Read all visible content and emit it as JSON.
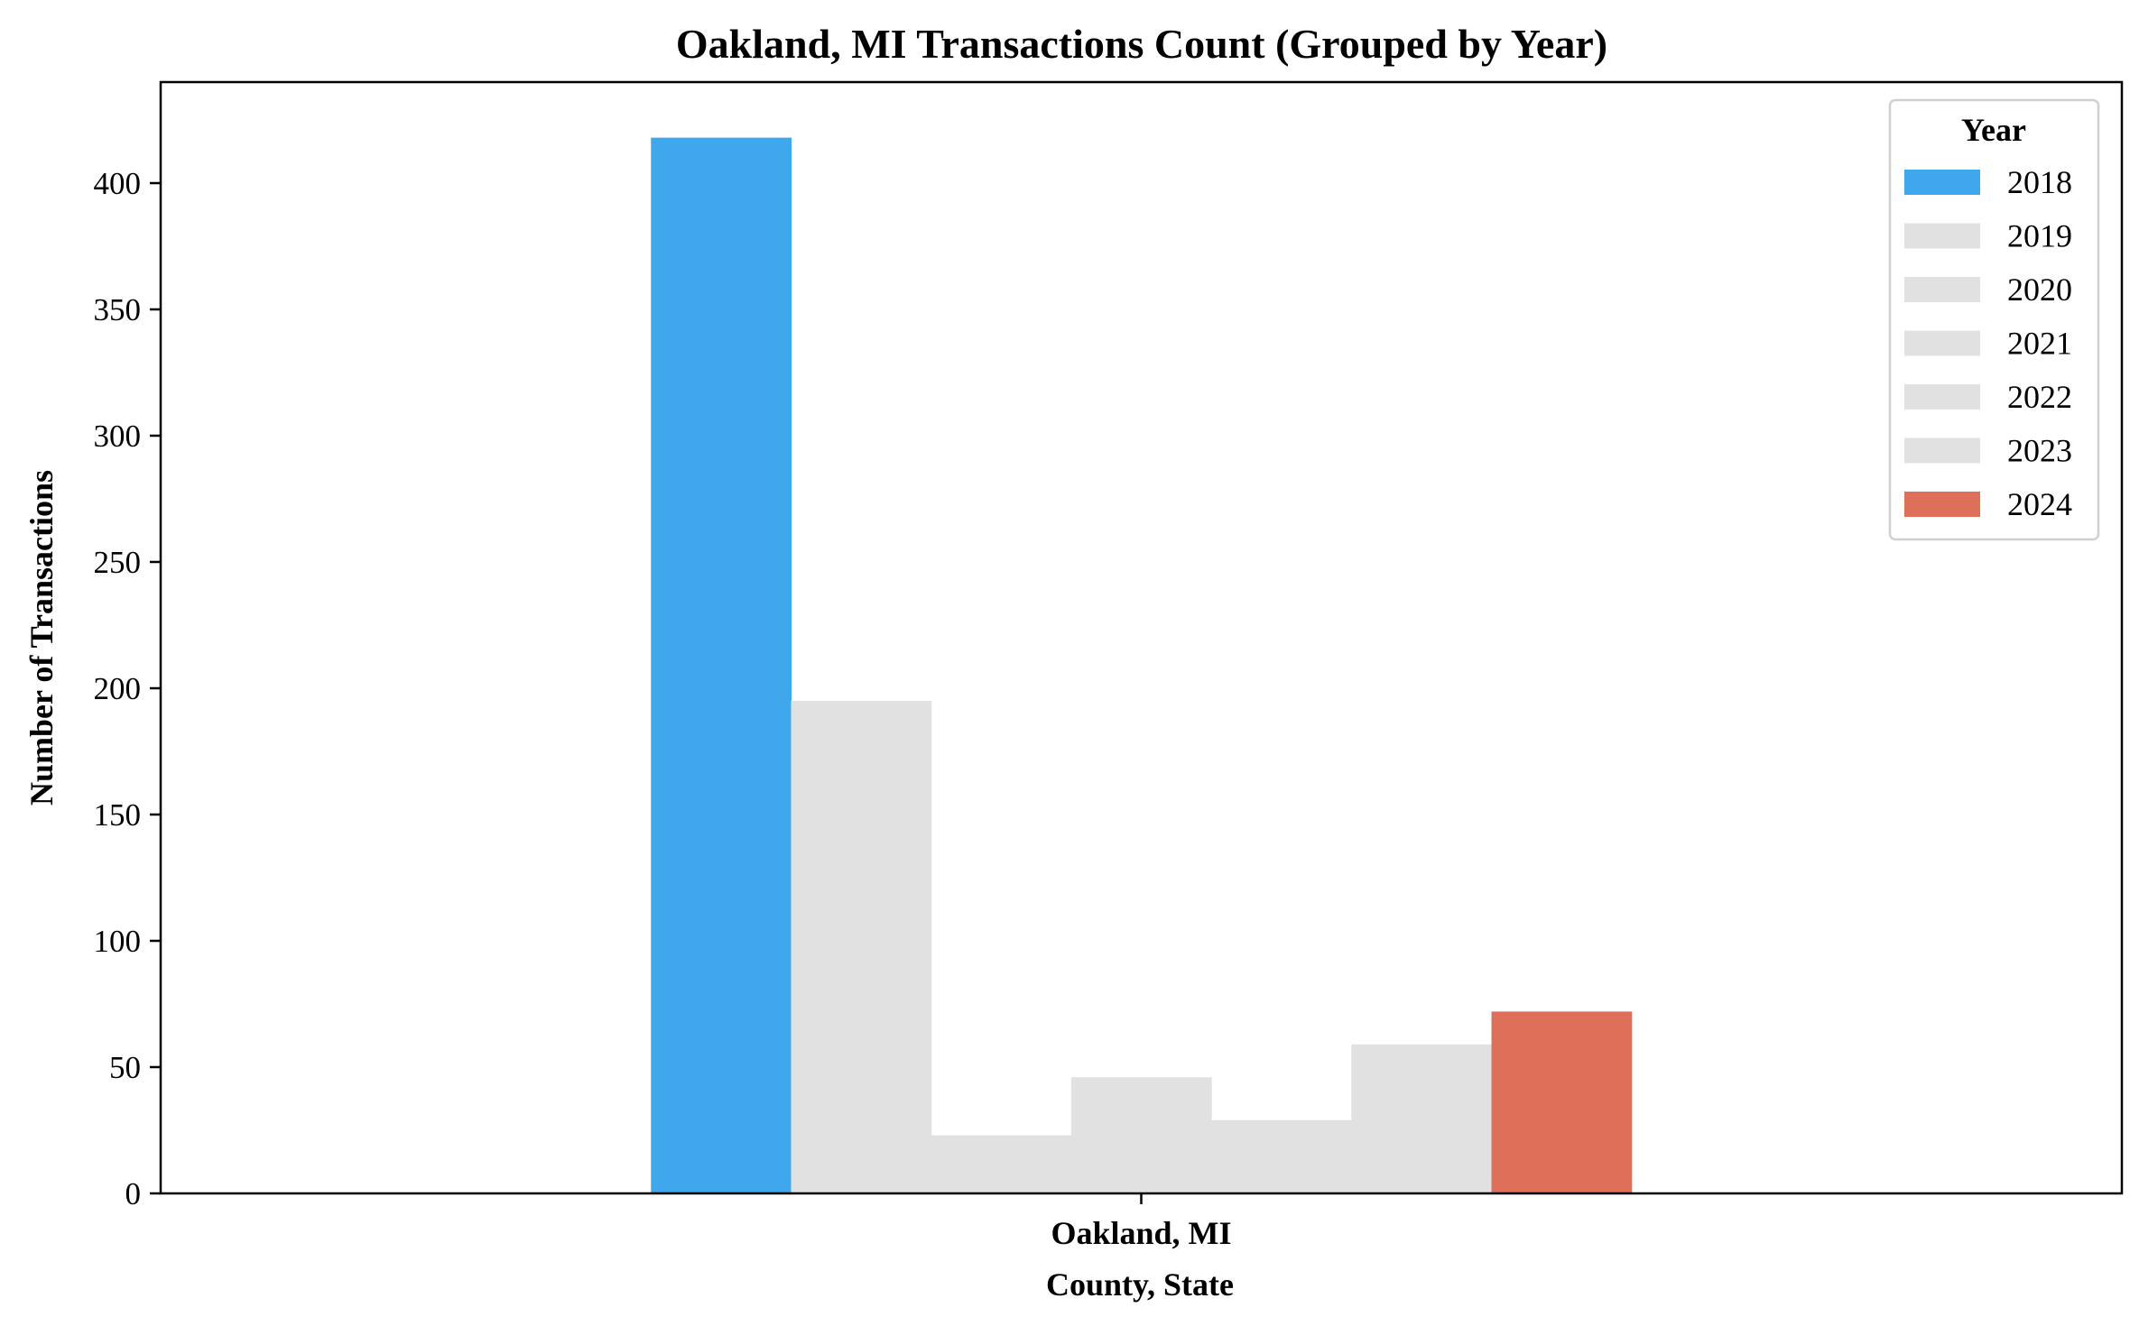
{
  "chart_data": {
    "type": "bar",
    "title": "Oakland, MI Transactions Count (Grouped by Year)",
    "xlabel": "County, State",
    "ylabel": "Number of Transactions",
    "categories": [
      "Oakland, MI"
    ],
    "ylim": [
      0,
      440
    ],
    "yticks": [
      0,
      50,
      100,
      150,
      200,
      250,
      300,
      350,
      400
    ],
    "grid": false,
    "legend": {
      "title": "Year",
      "placement": "top-right"
    },
    "series": [
      {
        "name": "2018",
        "values": [
          418
        ],
        "color": "#3fa7ec"
      },
      {
        "name": "2019",
        "values": [
          195
        ],
        "color": "#e1e1e1"
      },
      {
        "name": "2020",
        "values": [
          23
        ],
        "color": "#e1e1e1"
      },
      {
        "name": "2021",
        "values": [
          46
        ],
        "color": "#e1e1e1"
      },
      {
        "name": "2022",
        "values": [
          29
        ],
        "color": "#e1e1e1"
      },
      {
        "name": "2023",
        "values": [
          59
        ],
        "color": "#e1e1e1"
      },
      {
        "name": "2024",
        "values": [
          72
        ],
        "color": "#de6f58"
      }
    ]
  }
}
